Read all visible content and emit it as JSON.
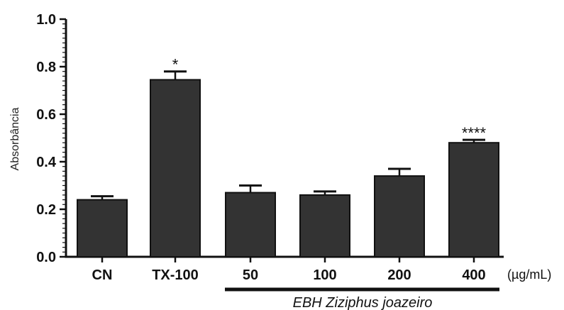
{
  "chart_data": {
    "type": "bar",
    "title": "",
    "xlabel": "",
    "ylabel": "Absorbância",
    "ylim": [
      0,
      1.0
    ],
    "yticks": [
      "0.0",
      "0.2",
      "0.4",
      "0.6",
      "0.8",
      "1.0"
    ],
    "categories": [
      "CN",
      "TX-100",
      "50",
      "100",
      "200",
      "400"
    ],
    "values": [
      0.24,
      0.745,
      0.27,
      0.26,
      0.34,
      0.48
    ],
    "errors": [
      0.015,
      0.035,
      0.03,
      0.015,
      0.03,
      0.012
    ],
    "significance": [
      "",
      "*",
      "",
      "",
      "",
      "****"
    ],
    "unit_label": "(µg/mL)",
    "group_label": "EBH Ziziphus joazeiro",
    "group_categories": [
      2,
      5
    ],
    "bar_color": "#333333",
    "grid": false,
    "legend": "none"
  }
}
